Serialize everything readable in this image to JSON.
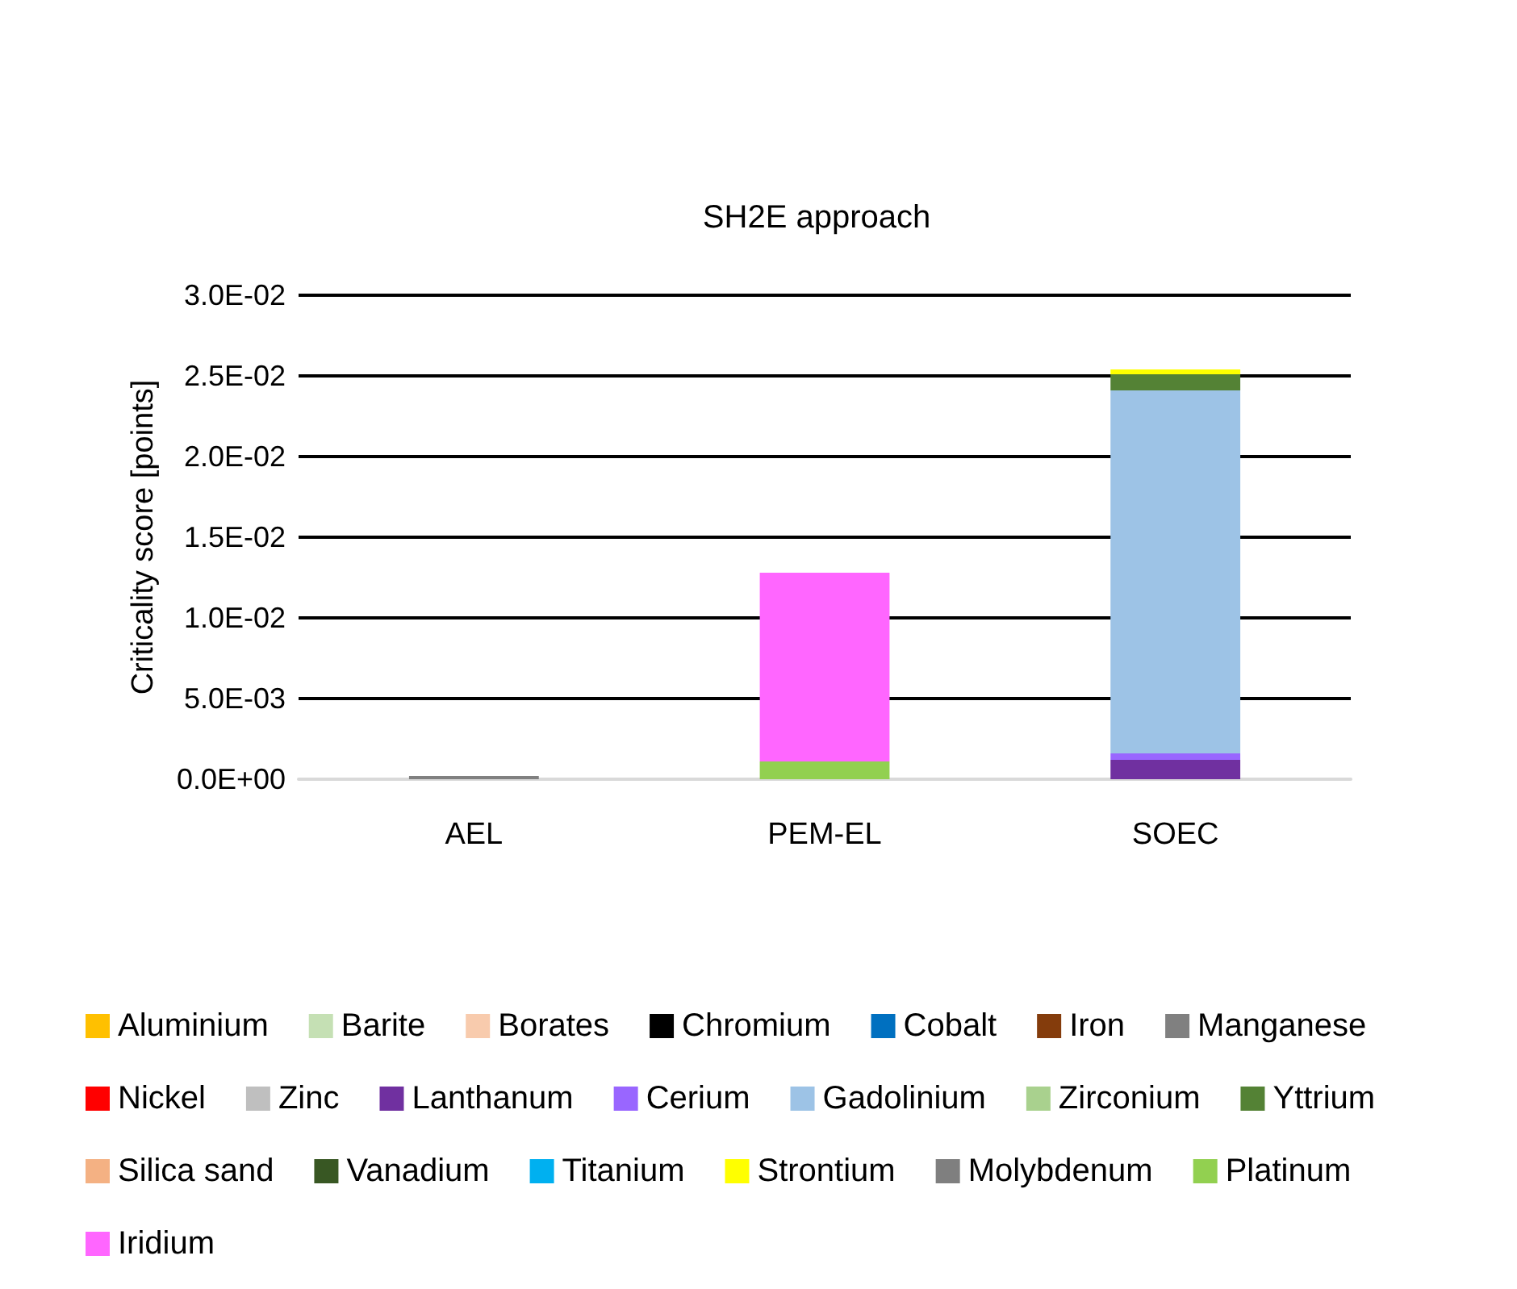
{
  "chart_data": {
    "type": "bar",
    "title": "SH2E approach",
    "ylabel": "Criticality score [points]",
    "categories": [
      "AEL",
      "PEM-EL",
      "SOEC"
    ],
    "stacked": true,
    "grid": "y",
    "legend": "bottom",
    "ylim": [
      0,
      0.03
    ],
    "yticks": [
      {
        "value": 0,
        "label": "0.0E+00"
      },
      {
        "value": 0.005,
        "label": "5.0E-03"
      },
      {
        "value": 0.01,
        "label": "1.0E-02"
      },
      {
        "value": 0.015,
        "label": "1.5E-02"
      },
      {
        "value": 0.02,
        "label": "2.0E-02"
      },
      {
        "value": 0.025,
        "label": "2.5E-02"
      },
      {
        "value": 0.03,
        "label": "3.0E-02"
      }
    ],
    "series": [
      {
        "name": "Aluminium",
        "color": "#ffc000",
        "values": [
          0,
          0,
          0
        ]
      },
      {
        "name": "Barite",
        "color": "#c5e0b4",
        "values": [
          0,
          0,
          0
        ]
      },
      {
        "name": "Borates",
        "color": "#f8cbad",
        "values": [
          0,
          0,
          0
        ]
      },
      {
        "name": "Chromium",
        "color": "#000000",
        "values": [
          0,
          0,
          0
        ]
      },
      {
        "name": "Cobalt",
        "color": "#0070c0",
        "values": [
          0,
          0,
          0
        ]
      },
      {
        "name": "Iron",
        "color": "#843c0c",
        "values": [
          0,
          0,
          0
        ]
      },
      {
        "name": "Manganese",
        "color": "#808080",
        "values": [
          0.0002,
          0,
          0
        ]
      },
      {
        "name": "Nickel",
        "color": "#ff0000",
        "values": [
          0,
          0,
          0
        ]
      },
      {
        "name": "Zinc",
        "color": "#bfbfbf",
        "values": [
          0,
          0,
          0
        ]
      },
      {
        "name": "Lanthanum",
        "color": "#7030a0",
        "values": [
          0,
          0,
          0.0012
        ]
      },
      {
        "name": "Cerium",
        "color": "#9966ff",
        "values": [
          0,
          0,
          0.0004
        ]
      },
      {
        "name": "Gadolinium",
        "color": "#9dc3e6",
        "values": [
          0,
          0,
          0.0225
        ]
      },
      {
        "name": "Zirconium",
        "color": "#a9d18e",
        "values": [
          0,
          0,
          0
        ]
      },
      {
        "name": "Yttrium",
        "color": "#548235",
        "values": [
          0,
          0,
          0.001
        ]
      },
      {
        "name": "Silica sand",
        "color": "#f4b183",
        "values": [
          0,
          0,
          0
        ]
      },
      {
        "name": "Vanadium",
        "color": "#385723",
        "values": [
          0,
          0,
          0
        ]
      },
      {
        "name": "Titanium",
        "color": "#00b0f0",
        "values": [
          0,
          0,
          0
        ]
      },
      {
        "name": "Strontium",
        "color": "#ffff00",
        "values": [
          0,
          0,
          0.0003
        ]
      },
      {
        "name": "Molybdenum",
        "color": "#7f7f7f",
        "values": [
          0,
          0,
          0
        ]
      },
      {
        "name": "Platinum",
        "color": "#92d050",
        "values": [
          0,
          0.0011,
          0
        ]
      },
      {
        "name": "Iridium",
        "color": "#ff66ff",
        "values": [
          0,
          0.0117,
          0
        ]
      }
    ]
  }
}
